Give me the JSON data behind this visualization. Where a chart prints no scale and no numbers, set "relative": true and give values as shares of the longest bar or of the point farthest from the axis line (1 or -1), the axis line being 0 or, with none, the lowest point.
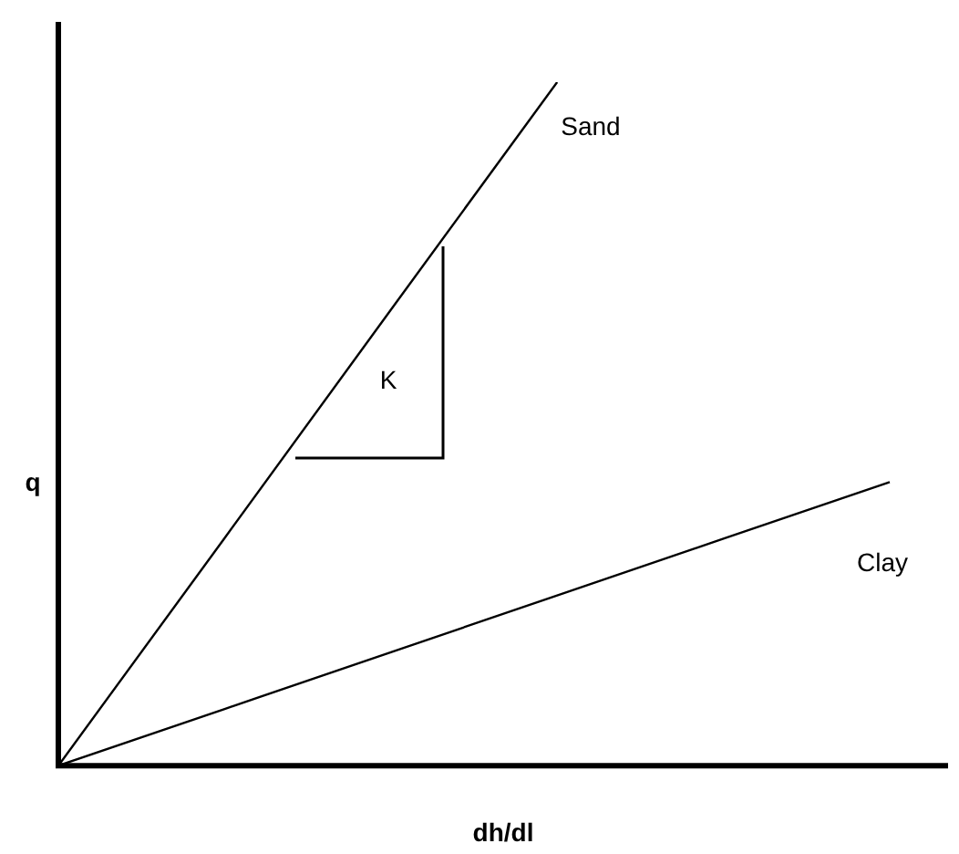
{
  "chart_data": {
    "type": "line",
    "relative": true,
    "xlabel": "dh/dl",
    "ylabel": "q",
    "categories": [
      null,
      null,
      null,
      null,
      null,
      null
    ],
    "series": [
      {
        "name": "Sand",
        "color": "#000000",
        "values": [
          0,
          0.333,
          0.667,
          1,
          null,
          null
        ]
      },
      {
        "name": "Clay",
        "color": "#000000",
        "values": [
          0,
          0.083,
          0.166,
          0.249,
          0.332,
          0.415
        ]
      }
    ],
    "annotations": [
      "K"
    ],
    "grid": false,
    "legend": false,
    "marker": "none",
    "line_style": "solid"
  }
}
